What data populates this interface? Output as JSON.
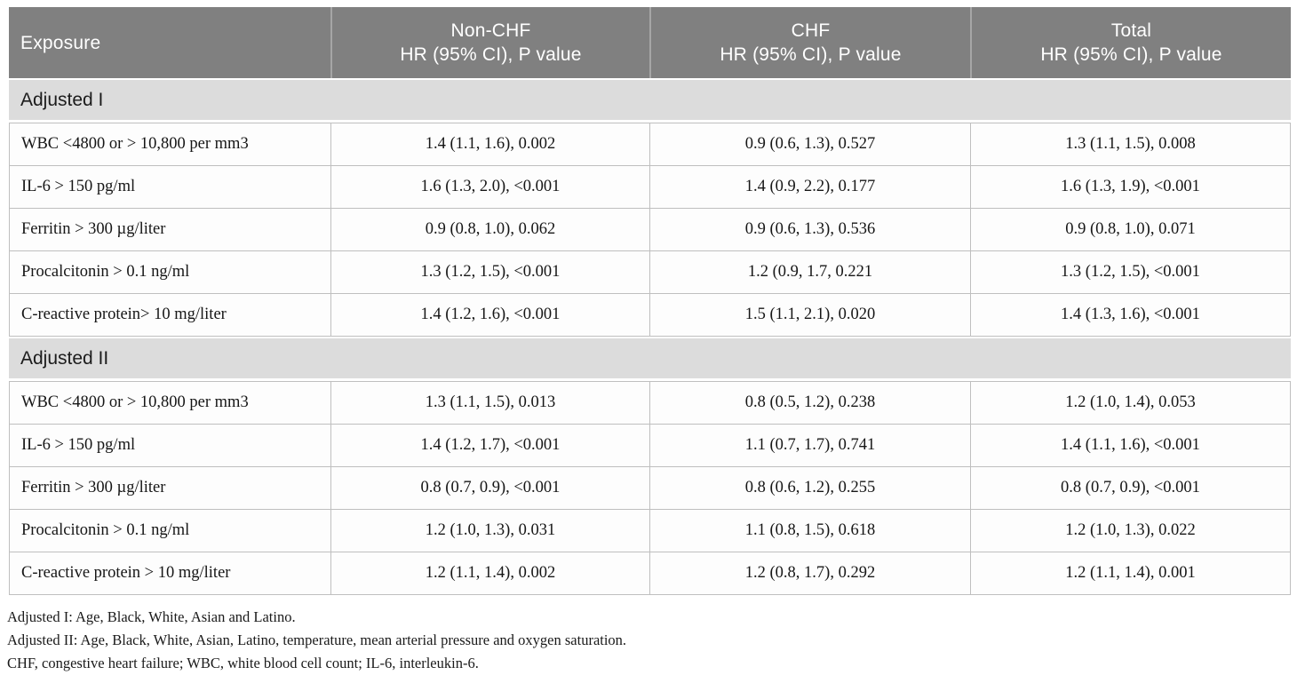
{
  "table": {
    "header": {
      "exposure_label": "Exposure",
      "columns": [
        {
          "group": "Non-CHF",
          "sub": "HR (95% CI), P value"
        },
        {
          "group": "CHF",
          "sub": "HR (95% CI), P value"
        },
        {
          "group": "Total",
          "sub": "HR (95% CI), P value"
        }
      ]
    },
    "sections": [
      {
        "label": "Adjusted I",
        "rows": [
          {
            "exposure": "WBC <4800 or > 10,800 per mm3",
            "non_chf": "1.4 (1.1, 1.6), 0.002",
            "chf": "0.9 (0.6, 1.3), 0.527",
            "total": "1.3 (1.1, 1.5), 0.008"
          },
          {
            "exposure": "IL-6 > 150 pg/ml",
            "non_chf": "1.6 (1.3, 2.0), <0.001",
            "chf": "1.4 (0.9, 2.2), 0.177",
            "total": "1.6 (1.3, 1.9), <0.001"
          },
          {
            "exposure": "Ferritin > 300 µg/liter",
            "non_chf": "0.9 (0.8, 1.0), 0.062",
            "chf": "0.9 (0.6, 1.3), 0.536",
            "total": "0.9 (0.8, 1.0), 0.071"
          },
          {
            "exposure": "Procalcitonin > 0.1 ng/ml",
            "non_chf": "1.3 (1.2, 1.5), <0.001",
            "chf": "1.2 (0.9, 1.7, 0.221",
            "total": "1.3 (1.2, 1.5), <0.001"
          },
          {
            "exposure": "C-reactive protein> 10 mg/liter",
            "non_chf": "1.4 (1.2, 1.6), <0.001",
            "chf": "1.5 (1.1, 2.1), 0.020",
            "total": "1.4 (1.3, 1.6), <0.001"
          }
        ]
      },
      {
        "label": "Adjusted II",
        "rows": [
          {
            "exposure": "WBC <4800 or > 10,800 per mm3",
            "non_chf": "1.3 (1.1, 1.5), 0.013",
            "chf": "0.8 (0.5, 1.2), 0.238",
            "total": "1.2 (1.0, 1.4), 0.053"
          },
          {
            "exposure": "IL-6 > 150 pg/ml",
            "non_chf": "1.4 (1.2, 1.7), <0.001",
            "chf": "1.1 (0.7, 1.7), 0.741",
            "total": "1.4 (1.1, 1.6), <0.001"
          },
          {
            "exposure": "Ferritin > 300 µg/liter",
            "non_chf": "0.8 (0.7, 0.9), <0.001",
            "chf": "0.8 (0.6, 1.2), 0.255",
            "total": "0.8 (0.7, 0.9), <0.001"
          },
          {
            "exposure": "Procalcitonin > 0.1 ng/ml",
            "non_chf": "1.2 (1.0, 1.3), 0.031",
            "chf": "1.1 (0.8, 1.5), 0.618",
            "total": "1.2 (1.0, 1.3), 0.022"
          },
          {
            "exposure": "C-reactive protein > 10 mg/liter",
            "non_chf": "1.2 (1.1, 1.4), 0.002",
            "chf": "1.2 (0.8, 1.7), 0.292",
            "total": "1.2 (1.1, 1.4), 0.001"
          }
        ]
      }
    ],
    "footnotes": [
      "Adjusted I: Age, Black, White, Asian and Latino.",
      "Adjusted II: Age, Black, White, Asian, Latino, temperature, mean arterial pressure and oxygen saturation.",
      "CHF, congestive heart failure; WBC, white blood cell count; IL-6, interleukin-6."
    ]
  },
  "colors": {
    "header_bg": "#808080",
    "header_text": "#ffffff",
    "header_sep": "#a6a6a6",
    "section_bg": "#dcdcdc",
    "row_bg": "#fdfdfd",
    "border": "#bfbfbf",
    "text": "#161616"
  }
}
